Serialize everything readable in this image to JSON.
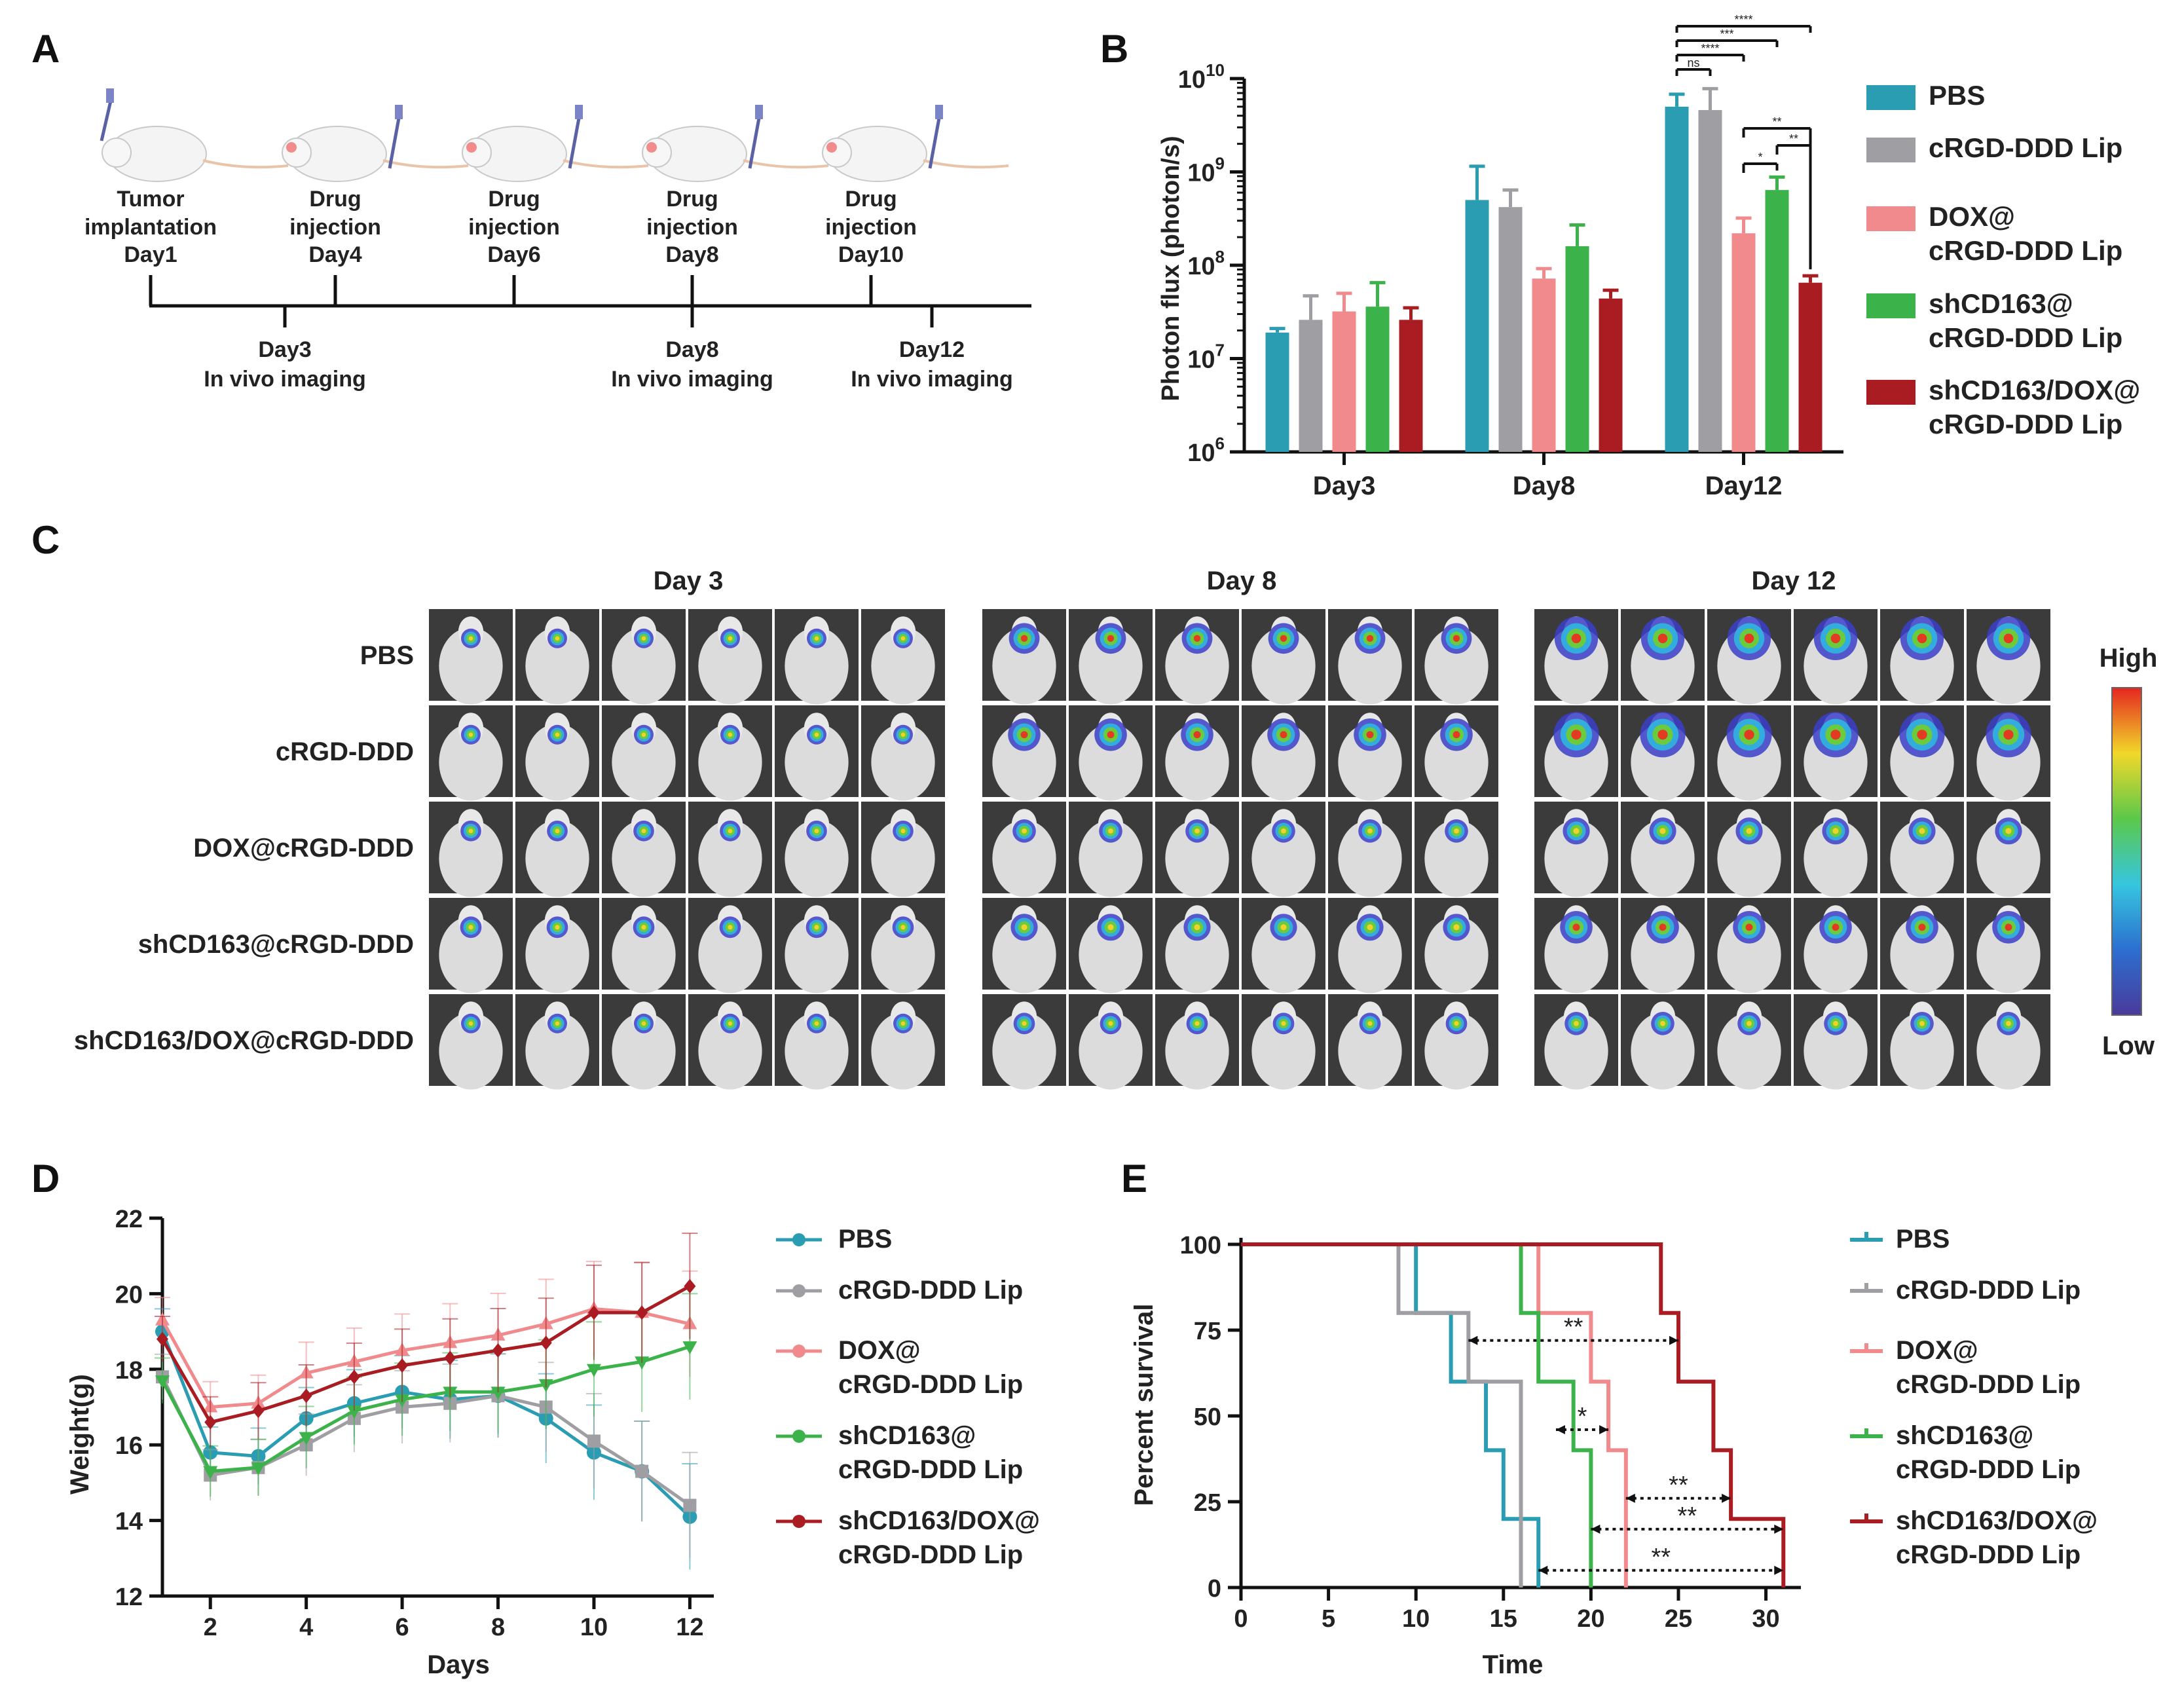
{
  "panels": {
    "a": "A",
    "b": "B",
    "c": "C",
    "d": "D",
    "e": "E"
  },
  "colors": {
    "pbs": "#2a9db2",
    "crgd": "#9e9ea3",
    "dox": "#f08a8c",
    "shcd163": "#3cb34a",
    "combo": "#a81c22",
    "axis": "#111111"
  },
  "timeline": {
    "top_events": [
      {
        "line1": "Tumor",
        "line2": "implantation",
        "line3": "Day1"
      },
      {
        "line1": "Drug",
        "line2": "injection",
        "line3": "Day4"
      },
      {
        "line1": "Drug",
        "line2": "injection",
        "line3": "Day6"
      },
      {
        "line1": "Drug",
        "line2": "injection",
        "line3": "Day8"
      },
      {
        "line1": "Drug",
        "line2": "injection",
        "line3": "Day10"
      }
    ],
    "bottom_events": [
      {
        "line1": "Day3",
        "line2": "In vivo imaging"
      },
      {
        "line1": "Day8",
        "line2": "In vivo imaging"
      },
      {
        "line1": "Day12",
        "line2": "In vivo imaging"
      }
    ]
  },
  "chart_data": [
    {
      "id": "B",
      "type": "bar",
      "scale": "log",
      "ylabel": "Photon flux (photon/s)",
      "yticks": [
        {
          "base": "10",
          "exp": "6"
        },
        {
          "base": "10",
          "exp": "7"
        },
        {
          "base": "10",
          "exp": "8"
        },
        {
          "base": "10",
          "exp": "9"
        },
        {
          "base": "10",
          "exp": "10"
        }
      ],
      "ylim": [
        1000000,
        10000000000
      ],
      "categories": [
        "Day3",
        "Day8",
        "Day12"
      ],
      "series": [
        {
          "name": "PBS",
          "legend": [
            "PBS"
          ],
          "values": [
            19000000,
            500000000,
            5000000000
          ],
          "errors": [
            21000000,
            1150000000,
            6800000000
          ]
        },
        {
          "name": "cRGD-DDD Lip",
          "legend": [
            "cRGD-DDD Lip"
          ],
          "values": [
            26000000,
            420000000,
            4600000000
          ],
          "errors": [
            47000000,
            640000000,
            7800000000
          ]
        },
        {
          "name": "DOX@cRGD-DDD Lip",
          "legend": [
            "DOX@",
            "cRGD-DDD Lip"
          ],
          "values": [
            32000000,
            72000000,
            220000000
          ],
          "errors": [
            50000000,
            92000000,
            320000000
          ]
        },
        {
          "name": "shCD163@cRGD-DDD Lip",
          "legend": [
            "shCD163@",
            "cRGD-DDD Lip"
          ],
          "values": [
            36000000,
            160000000,
            640000000
          ],
          "errors": [
            65000000,
            270000000,
            880000000
          ]
        },
        {
          "name": "shCD163/DOX@cRGD-DDD Lip",
          "legend": [
            "shCD163/DOX@",
            "cRGD-DDD Lip"
          ],
          "values": [
            26000000,
            44000000,
            65000000
          ],
          "errors": [
            35000000,
            54000000,
            77000000
          ]
        }
      ],
      "significance": [
        "****",
        "***",
        "****",
        "ns",
        "**",
        "*",
        "**"
      ]
    },
    {
      "id": "C",
      "type": "image-grid",
      "columns": [
        "Day 3",
        "Day 8",
        "Day 12"
      ],
      "rows": [
        "PBS",
        "cRGD-DDD",
        "DOX@cRGD-DDD",
        "shCD163@cRGD-DDD",
        "shCD163/DOX@cRGD-DDD"
      ],
      "colorbar": {
        "high": "High",
        "low": "Low"
      }
    },
    {
      "id": "D",
      "type": "line",
      "xlabel": "Days",
      "ylabel": "Weight(g)",
      "xlim": [
        1,
        12.5
      ],
      "ylim": [
        12,
        22
      ],
      "xticks": [
        "2",
        "4",
        "6",
        "8",
        "10",
        "12"
      ],
      "yticks": [
        "12",
        "14",
        "16",
        "18",
        "20",
        "22"
      ],
      "x": [
        1,
        2,
        3,
        4,
        5,
        6,
        7,
        8,
        9,
        10,
        11,
        12
      ],
      "series": [
        {
          "name": "PBS",
          "legend": [
            "PBS"
          ],
          "values": [
            19.0,
            15.8,
            15.7,
            16.7,
            17.1,
            17.4,
            17.2,
            17.3,
            16.7,
            15.8,
            15.3,
            14.1
          ]
        },
        {
          "name": "cRGD-DDD Lip",
          "legend": [
            "cRGD-DDD Lip"
          ],
          "values": [
            17.8,
            15.2,
            15.4,
            16.0,
            16.7,
            17.0,
            17.1,
            17.3,
            17.0,
            16.1,
            15.3,
            14.4
          ]
        },
        {
          "name": "DOX@cRGD-DDD Lip",
          "legend": [
            "DOX@",
            "cRGD-DDD Lip"
          ],
          "values": [
            19.3,
            17.0,
            17.1,
            17.9,
            18.2,
            18.5,
            18.7,
            18.9,
            19.2,
            19.6,
            19.5,
            19.2
          ]
        },
        {
          "name": "shCD163@cRGD-DDD Lip",
          "legend": [
            "shCD163@",
            "cRGD-DDD Lip"
          ],
          "values": [
            17.7,
            15.3,
            15.4,
            16.2,
            16.9,
            17.2,
            17.4,
            17.4,
            17.6,
            18.0,
            18.2,
            18.6
          ]
        },
        {
          "name": "shCD163/DOX@cRGD-DDD Lip",
          "legend": [
            "shCD163/DOX@",
            "cRGD-DDD Lip"
          ],
          "values": [
            18.8,
            16.6,
            16.9,
            17.3,
            17.8,
            18.1,
            18.3,
            18.5,
            18.7,
            19.5,
            19.5,
            20.2
          ]
        }
      ]
    },
    {
      "id": "E",
      "type": "line",
      "step": true,
      "xlabel": "Time",
      "ylabel": "Percent survival",
      "xlim": [
        0,
        32
      ],
      "ylim": [
        0,
        100
      ],
      "xticks": [
        "0",
        "5",
        "10",
        "15",
        "20",
        "25",
        "30"
      ],
      "yticks": [
        "0",
        "25",
        "50",
        "75",
        "100"
      ],
      "series": [
        {
          "name": "PBS",
          "legend": [
            "PBS"
          ],
          "steps": [
            [
              10,
              80
            ],
            [
              12,
              60
            ],
            [
              14,
              40
            ],
            [
              15,
              20
            ],
            [
              17,
              0
            ]
          ]
        },
        {
          "name": "cRGD-DDD Lip",
          "legend": [
            "cRGD-DDD Lip"
          ],
          "steps": [
            [
              9,
              80
            ],
            [
              13,
              60
            ],
            [
              16,
              0
            ]
          ]
        },
        {
          "name": "DOX@cRGD-DDD Lip",
          "legend": [
            "DOX@",
            "cRGD-DDD Lip"
          ],
          "steps": [
            [
              17,
              80
            ],
            [
              20,
              60
            ],
            [
              21,
              40
            ],
            [
              22,
              0
            ]
          ]
        },
        {
          "name": "shCD163@cRGD-DDD Lip",
          "legend": [
            "shCD163@",
            "cRGD-DDD Lip"
          ],
          "steps": [
            [
              16,
              80
            ],
            [
              17,
              60
            ],
            [
              19,
              40
            ],
            [
              20,
              0
            ]
          ]
        },
        {
          "name": "shCD163/DOX@cRGD-DDD Lip",
          "legend": [
            "shCD163/DOX@",
            "cRGD-DDD Lip"
          ],
          "steps": [
            [
              24,
              80
            ],
            [
              25,
              60
            ],
            [
              27,
              40
            ],
            [
              28,
              20
            ],
            [
              31,
              0
            ]
          ]
        }
      ],
      "annotations": [
        {
          "label": "**",
          "x1": 13,
          "x2": 25,
          "y": 72
        },
        {
          "label": "*",
          "x1": 18,
          "x2": 21,
          "y": 46
        },
        {
          "label": "**",
          "x1": 22,
          "x2": 28,
          "y": 26
        },
        {
          "label": "**",
          "x1": 20,
          "x2": 31,
          "y": 17
        },
        {
          "label": "**",
          "x1": 17,
          "x2": 31,
          "y": 5
        }
      ]
    }
  ]
}
